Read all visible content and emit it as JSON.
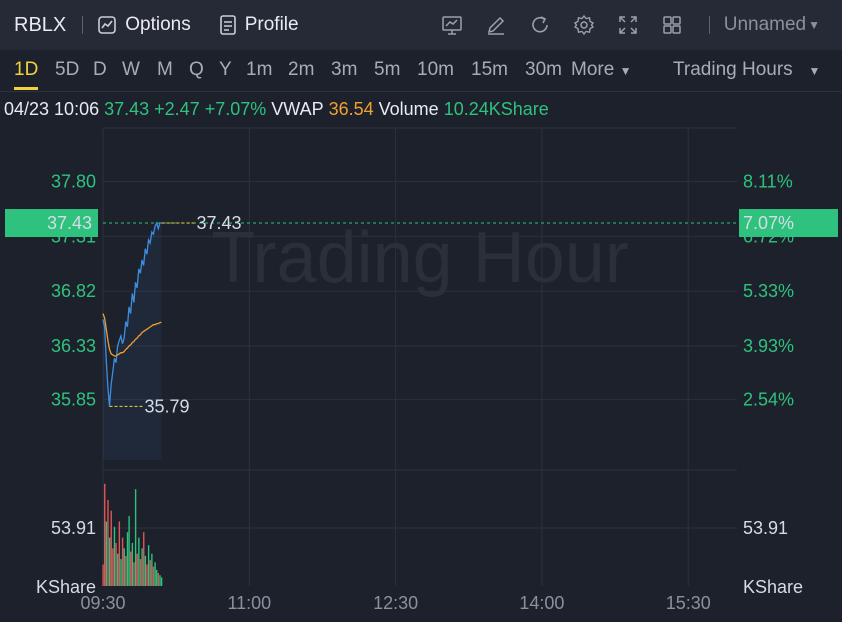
{
  "header": {
    "ticker": "RBLX",
    "tabs": [
      {
        "label": "Options",
        "icon": "options-chart-icon"
      },
      {
        "label": "Profile",
        "icon": "profile-document-icon"
      }
    ],
    "tools": [
      "chart-type-icon",
      "draw-pen-icon",
      "refresh-icon",
      "settings-gear-icon",
      "fullscreen-icon",
      "layout-grid-icon"
    ],
    "layout_name": "Unnamed"
  },
  "timeframes": [
    "1D",
    "5D",
    "D",
    "W",
    "M",
    "Q",
    "Y",
    "1m",
    "2m",
    "3m",
    "5m",
    "10m",
    "15m",
    "30m"
  ],
  "active_timeframe": "1D",
  "more_label": "More",
  "session_label": "Trading Hours",
  "info": {
    "datetime": "04/23 10:06",
    "price": "37.43",
    "change": "+2.47",
    "change_pct": "+7.07%",
    "vwap_label": "VWAP",
    "vwap": "36.54",
    "volume_label": "Volume",
    "volume": "10.24KShare"
  },
  "watermark": "Trading Hour",
  "colors": {
    "up": "#2ec27e",
    "down": "#e05656",
    "price_line": "#3d8ee0",
    "vwap_line": "#f0a030",
    "marker": "#f2d33a"
  },
  "chart_data": {
    "type": "line",
    "x_ticks": [
      "09:30",
      "11:00",
      "12:30",
      "14:00",
      "15:30"
    ],
    "x_range_minutes": [
      0,
      390
    ],
    "y_range": [
      35.31,
      38.28
    ],
    "price_ticks_left": [
      "37.80",
      "37.31",
      "36.82",
      "36.33",
      "35.85"
    ],
    "pct_ticks_right": [
      "8.11%",
      "6.72%",
      "5.33%",
      "3.93%",
      "2.54%"
    ],
    "current_price_label": "37.43",
    "current_pct_label": "7.07%",
    "high_label": "37.43",
    "low_label": "35.79",
    "volume_axis_label": "53.91",
    "volume_unit": "KShare",
    "series": [
      {
        "name": "Price",
        "x": [
          0,
          1,
          2,
          3,
          4,
          5,
          6,
          7,
          8,
          9,
          10,
          11,
          12,
          13,
          14,
          15,
          16,
          17,
          18,
          19,
          20,
          21,
          22,
          23,
          24,
          25,
          26,
          27,
          28,
          29,
          30,
          31,
          32,
          33,
          34,
          35,
          36
        ],
        "y": [
          36.57,
          36.5,
          36.2,
          35.96,
          35.79,
          35.98,
          36.1,
          36.22,
          36.18,
          36.33,
          36.38,
          36.42,
          36.35,
          36.4,
          36.55,
          36.5,
          36.68,
          36.62,
          36.8,
          36.72,
          36.9,
          36.85,
          37.02,
          36.98,
          37.1,
          37.05,
          37.2,
          37.15,
          37.28,
          37.25,
          37.35,
          37.33,
          37.4,
          37.43,
          37.38,
          37.43,
          37.43
        ]
      },
      {
        "name": "VWAP",
        "x": [
          0,
          1,
          2,
          3,
          4,
          5,
          6,
          7,
          8,
          9,
          10,
          11,
          12,
          13,
          14,
          15,
          16,
          17,
          18,
          19,
          20,
          21,
          22,
          23,
          24,
          25,
          26,
          27,
          28,
          29,
          30,
          31,
          32,
          33,
          34,
          35,
          36
        ],
        "y": [
          36.62,
          36.58,
          36.48,
          36.38,
          36.3,
          36.26,
          36.25,
          36.24,
          36.24,
          36.25,
          36.26,
          36.27,
          36.27,
          36.28,
          36.3,
          36.31,
          36.33,
          36.34,
          36.36,
          36.37,
          36.39,
          36.4,
          36.42,
          36.43,
          36.45,
          36.46,
          36.47,
          36.48,
          36.49,
          36.5,
          36.51,
          36.52,
          36.52,
          36.53,
          36.53,
          36.54,
          36.54
        ]
      }
    ],
    "volume": {
      "max": 107.82,
      "values": [
        20,
        95,
        60,
        80,
        45,
        70,
        35,
        55,
        40,
        30,
        60,
        25,
        45,
        35,
        28,
        50,
        65,
        32,
        40,
        22,
        90,
        30,
        45,
        25,
        35,
        50,
        28,
        20,
        38,
        24,
        30,
        18,
        22,
        15,
        12,
        10,
        8
      ],
      "up": [
        false,
        false,
        true,
        false,
        true,
        false,
        false,
        true,
        false,
        true,
        false,
        true,
        false,
        true,
        false,
        true,
        true,
        false,
        true,
        false,
        true,
        false,
        true,
        false,
        true,
        false,
        true,
        false,
        true,
        false,
        true,
        false,
        true,
        true,
        false,
        true,
        true
      ]
    }
  }
}
